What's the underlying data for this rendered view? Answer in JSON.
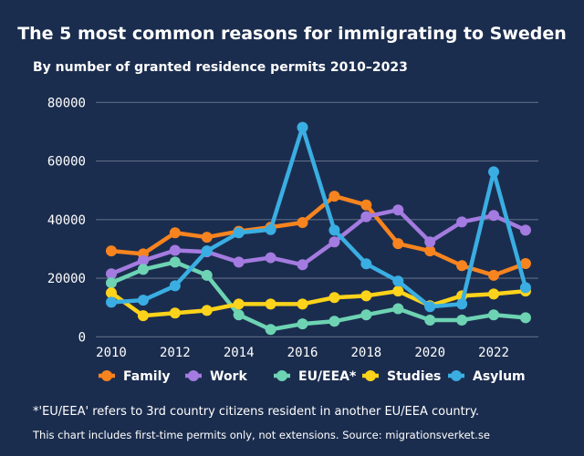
{
  "chart_data": {
    "type": "line",
    "title": "The 5 most common reasons for immigrating to Sweden",
    "subtitle": "By number of granted residence permits 2010–2023",
    "x": [
      2010,
      2011,
      2012,
      2013,
      2014,
      2015,
      2016,
      2017,
      2018,
      2019,
      2020,
      2021,
      2022,
      2023
    ],
    "xticks": [
      "2010",
      "2012",
      "2014",
      "2016",
      "2018",
      "2020",
      "2022"
    ],
    "yticks": [
      "0",
      "20000",
      "40000",
      "60000",
      "80000"
    ],
    "ylim": [
      0,
      80000
    ],
    "grid": true,
    "legend": "bottom",
    "series": [
      {
        "name": "Family",
        "color": "#f7841f",
        "values": [
          29300,
          28300,
          35500,
          34000,
          36000,
          37400,
          39000,
          48000,
          45000,
          31800,
          29300,
          24300,
          21000,
          25000
        ]
      },
      {
        "name": "Work",
        "color": "#a47be0",
        "values": [
          21500,
          26000,
          29500,
          29000,
          25500,
          27000,
          24600,
          32400,
          41000,
          43300,
          32400,
          39200,
          41400,
          36400
        ]
      },
      {
        "name": "EU/EEA*",
        "color": "#6dd3b3",
        "values": [
          18400,
          23000,
          25500,
          21000,
          7500,
          2500,
          4400,
          5300,
          7500,
          9600,
          5700,
          5700,
          7500,
          6500
        ]
      },
      {
        "name": "Studies",
        "color": "#fdd31b",
        "values": [
          15000,
          7200,
          8100,
          9000,
          11200,
          11200,
          11200,
          13400,
          14000,
          15600,
          10600,
          14000,
          14600,
          15600
        ]
      },
      {
        "name": "Asylum",
        "color": "#3aaee2",
        "values": [
          11800,
          12500,
          17400,
          29300,
          35500,
          36600,
          71500,
          36400,
          24900,
          19000,
          10300,
          11200,
          56300,
          16800
        ]
      }
    ]
  },
  "footnote": "*'EU/EEA' refers to 3rd country citizens resident in another EU/EEA country.",
  "source": "This chart includes first-time permits only, not extensions. Source: migrationsverket.se"
}
